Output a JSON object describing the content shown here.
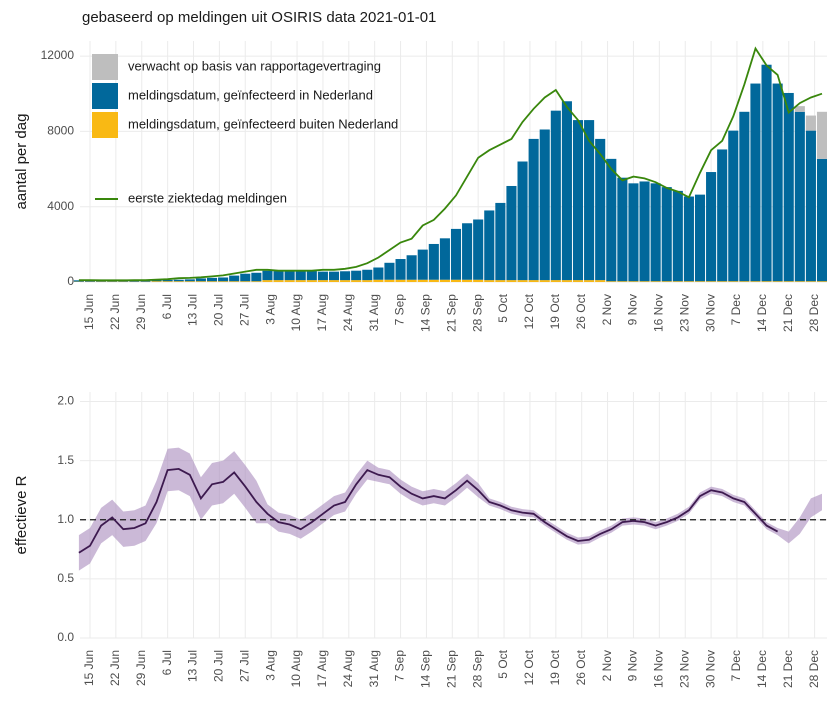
{
  "chart_data": [
    {
      "type": "bar",
      "title": "gebaseerd op meldingen uit OSIRIS data 2021-01-01",
      "y_label": "aantal per dag",
      "x": [
        "12 Jun",
        "15 Jun",
        "18 Jun",
        "21 Jun",
        "24 Jun",
        "27 Jun",
        "30 Jun",
        "3 Jul",
        "6 Jul",
        "9 Jul",
        "12 Jul",
        "15 Jul",
        "18 Jul",
        "21 Jul",
        "24 Jul",
        "27 Jul",
        "30 Jul",
        "2 Aug",
        "5 Aug",
        "8 Aug",
        "11 Aug",
        "14 Aug",
        "17 Aug",
        "20 Aug",
        "23 Aug",
        "26 Aug",
        "29 Aug",
        "1 Sep",
        "4 Sep",
        "7 Sep",
        "10 Sep",
        "13 Sep",
        "16 Sep",
        "19 Sep",
        "22 Sep",
        "25 Sep",
        "28 Sep",
        "1 Oct",
        "4 Oct",
        "7 Oct",
        "10 Oct",
        "13 Oct",
        "16 Oct",
        "19 Oct",
        "22 Oct",
        "25 Oct",
        "28 Oct",
        "31 Oct",
        "3 Nov",
        "6 Nov",
        "9 Nov",
        "12 Nov",
        "15 Nov",
        "18 Nov",
        "21 Nov",
        "24 Nov",
        "27 Nov",
        "30 Nov",
        "3 Dec",
        "6 Dec",
        "9 Dec",
        "12 Dec",
        "15 Dec",
        "18 Dec",
        "21 Dec",
        "24 Dec",
        "27 Dec",
        "30 Dec"
      ],
      "series": [
        {
          "name": "verwacht op basis van rapportagevertraging",
          "color": "#bebebe",
          "values": [
            0,
            0,
            0,
            0,
            0,
            0,
            0,
            0,
            0,
            0,
            0,
            0,
            0,
            0,
            0,
            0,
            0,
            0,
            0,
            0,
            0,
            0,
            0,
            0,
            0,
            0,
            0,
            0,
            0,
            0,
            0,
            0,
            0,
            0,
            0,
            0,
            0,
            0,
            0,
            0,
            0,
            0,
            0,
            0,
            0,
            0,
            0,
            0,
            0,
            0,
            0,
            0,
            0,
            0,
            0,
            0,
            0,
            0,
            0,
            0,
            0,
            0,
            0,
            0,
            0,
            300,
            800,
            2500
          ]
        },
        {
          "name": "meldingsdatum, geïnfecteerd in Nederland",
          "color": "#01689b",
          "values": [
            70,
            70,
            60,
            60,
            70,
            60,
            60,
            60,
            70,
            80,
            100,
            150,
            180,
            200,
            300,
            400,
            450,
            500,
            480,
            500,
            470,
            480,
            450,
            450,
            470,
            500,
            550,
            650,
            900,
            1100,
            1300,
            1600,
            1900,
            2200,
            2700,
            3000,
            3200,
            3700,
            4100,
            5000,
            6300,
            7500,
            8000,
            9000,
            9500,
            8500,
            8500,
            7500,
            6500,
            5500,
            5200,
            5300,
            5200,
            5000,
            4800,
            4500,
            4600,
            5800,
            7000,
            8000,
            9000,
            10500,
            11500,
            10500,
            10000,
            9000,
            8000,
            6500
          ]
        },
        {
          "name": "meldingsdatum, geïnfecteerd buiten Nederland",
          "color": "#f9b914",
          "values": [
            20,
            20,
            20,
            20,
            20,
            20,
            20,
            40,
            40,
            40,
            40,
            40,
            40,
            40,
            40,
            40,
            40,
            100,
            100,
            100,
            100,
            100,
            100,
            100,
            100,
            100,
            100,
            120,
            120,
            120,
            120,
            120,
            120,
            120,
            120,
            120,
            120,
            100,
            100,
            100,
            100,
            100,
            100,
            100,
            100,
            100,
            100,
            100,
            40,
            40,
            40,
            40,
            40,
            40,
            40,
            40,
            40,
            40,
            40,
            40,
            40,
            40,
            40,
            40,
            40,
            40,
            40,
            40
          ]
        },
        {
          "name": "eerste ziektedag meldingen",
          "color": "#39870c",
          "kind": "line",
          "values": [
            100,
            100,
            90,
            90,
            90,
            100,
            100,
            120,
            150,
            200,
            220,
            250,
            300,
            350,
            450,
            550,
            650,
            650,
            600,
            600,
            600,
            600,
            650,
            650,
            700,
            800,
            1000,
            1300,
            1700,
            2100,
            2300,
            3000,
            3300,
            3900,
            4600,
            5600,
            6600,
            7000,
            7300,
            7600,
            8500,
            9200,
            9800,
            10200,
            9300,
            8600,
            7500,
            6800,
            6000,
            5400,
            5600,
            5500,
            5300,
            5000,
            4800,
            4500,
            5800,
            7000,
            7500,
            8800,
            10500,
            12400,
            11500,
            11000,
            9000,
            9500,
            9800,
            10000
          ]
        }
      ],
      "ylim": [
        0,
        12800
      ],
      "yticks": [
        0,
        4000,
        8000,
        12000
      ],
      "xticks": [
        "15 Jun",
        "22 Jun",
        "29 Jun",
        "6 Jul",
        "13 Jul",
        "20 Jul",
        "27 Jul",
        "3 Aug",
        "10 Aug",
        "17 Aug",
        "24 Aug",
        "31 Aug",
        "7 Sep",
        "14 Sep",
        "21 Sep",
        "28 Sep",
        "5 Oct",
        "12 Oct",
        "19 Oct",
        "26 Oct",
        "2 Nov",
        "9 Nov",
        "16 Nov",
        "23 Nov",
        "30 Nov",
        "7 Dec",
        "14 Dec",
        "21 Dec",
        "28 Dec"
      ],
      "grid": true
    },
    {
      "type": "line",
      "y_label": "effectieve R",
      "color": "#3d1a4f",
      "band_color": "#a98bbd",
      "x": [
        "12 Jun",
        "15 Jun",
        "18 Jun",
        "21 Jun",
        "24 Jun",
        "27 Jun",
        "30 Jun",
        "3 Jul",
        "6 Jul",
        "9 Jul",
        "12 Jul",
        "15 Jul",
        "18 Jul",
        "21 Jul",
        "24 Jul",
        "27 Jul",
        "30 Jul",
        "2 Aug",
        "5 Aug",
        "8 Aug",
        "11 Aug",
        "14 Aug",
        "17 Aug",
        "20 Aug",
        "23 Aug",
        "26 Aug",
        "29 Aug",
        "1 Sep",
        "4 Sep",
        "7 Sep",
        "10 Sep",
        "13 Sep",
        "16 Sep",
        "19 Sep",
        "22 Sep",
        "25 Sep",
        "28 Sep",
        "1 Oct",
        "4 Oct",
        "7 Oct",
        "10 Oct",
        "13 Oct",
        "16 Oct",
        "19 Oct",
        "22 Oct",
        "25 Oct",
        "28 Oct",
        "31 Oct",
        "3 Nov",
        "6 Nov",
        "9 Nov",
        "12 Nov",
        "15 Nov",
        "18 Nov",
        "21 Nov",
        "24 Nov",
        "27 Nov",
        "30 Nov",
        "3 Dec",
        "6 Dec",
        "9 Dec",
        "12 Dec",
        "15 Dec",
        "18 Dec",
        "21 Dec",
        "24 Dec",
        "27 Dec",
        "30 Dec"
      ],
      "values": [
        0.72,
        0.78,
        0.95,
        1.02,
        0.92,
        0.93,
        0.97,
        1.15,
        1.42,
        1.43,
        1.38,
        1.18,
        1.3,
        1.32,
        1.4,
        1.28,
        1.15,
        1.05,
        0.98,
        0.96,
        0.92,
        0.98,
        1.05,
        1.12,
        1.15,
        1.3,
        1.42,
        1.38,
        1.36,
        1.28,
        1.22,
        1.18,
        1.2,
        1.18,
        1.25,
        1.33,
        1.25,
        1.15,
        1.12,
        1.08,
        1.06,
        1.05,
        0.98,
        0.92,
        0.86,
        0.82,
        0.83,
        0.88,
        0.92,
        0.98,
        0.99,
        0.98,
        0.95,
        0.98,
        1.02,
        1.08,
        1.2,
        1.25,
        1.23,
        1.18,
        1.15,
        1.05,
        0.95,
        0.9,
        null,
        null,
        null,
        null
      ],
      "lower": [
        0.57,
        0.63,
        0.8,
        0.87,
        0.77,
        0.78,
        0.82,
        0.97,
        1.24,
        1.25,
        1.2,
        1.0,
        1.12,
        1.14,
        1.22,
        1.1,
        0.97,
        0.97,
        0.9,
        0.88,
        0.84,
        0.9,
        0.97,
        1.04,
        1.07,
        1.22,
        1.34,
        1.32,
        1.3,
        1.22,
        1.16,
        1.12,
        1.14,
        1.12,
        1.19,
        1.27,
        1.19,
        1.12,
        1.09,
        1.05,
        1.03,
        1.02,
        0.95,
        0.89,
        0.83,
        0.79,
        0.8,
        0.85,
        0.89,
        0.95,
        0.96,
        0.95,
        0.92,
        0.95,
        0.99,
        1.05,
        1.17,
        1.22,
        1.2,
        1.15,
        1.12,
        1.02,
        0.92,
        0.87,
        0.8,
        0.88,
        1.02,
        1.08
      ],
      "upper": [
        0.87,
        0.93,
        1.1,
        1.17,
        1.07,
        1.08,
        1.12,
        1.33,
        1.6,
        1.61,
        1.56,
        1.36,
        1.48,
        1.5,
        1.58,
        1.46,
        1.33,
        1.13,
        1.06,
        1.04,
        1.0,
        1.06,
        1.13,
        1.2,
        1.23,
        1.38,
        1.5,
        1.44,
        1.42,
        1.34,
        1.28,
        1.24,
        1.26,
        1.24,
        1.31,
        1.39,
        1.31,
        1.18,
        1.15,
        1.11,
        1.09,
        1.08,
        1.01,
        0.95,
        0.89,
        0.85,
        0.86,
        0.91,
        0.95,
        1.01,
        1.02,
        1.01,
        0.98,
        1.01,
        1.05,
        1.11,
        1.23,
        1.28,
        1.26,
        1.21,
        1.18,
        1.08,
        0.98,
        0.93,
        0.9,
        1.02,
        1.18,
        1.22
      ],
      "hline": 1,
      "ylim": [
        0,
        2.08
      ],
      "yticks": [
        {
          "value": 0,
          "label": "0.0"
        },
        {
          "value": 0.5,
          "label": "0.5"
        },
        {
          "value": 1,
          "label": "1.0"
        },
        {
          "value": 1.5,
          "label": "1.5"
        },
        {
          "value": 2,
          "label": "2.0"
        }
      ],
      "xticks": [
        "15 Jun",
        "22 Jun",
        "29 Jun",
        "6 Jul",
        "13 Jul",
        "20 Jul",
        "27 Jul",
        "3 Aug",
        "10 Aug",
        "17 Aug",
        "24 Aug",
        "31 Aug",
        "7 Sep",
        "14 Sep",
        "21 Sep",
        "28 Sep",
        "5 Oct",
        "12 Oct",
        "19 Oct",
        "26 Oct",
        "2 Nov",
        "9 Nov",
        "16 Nov",
        "23 Nov",
        "30 Nov",
        "7 Dec",
        "14 Dec",
        "21 Dec",
        "28 Dec"
      ],
      "grid": true
    }
  ]
}
